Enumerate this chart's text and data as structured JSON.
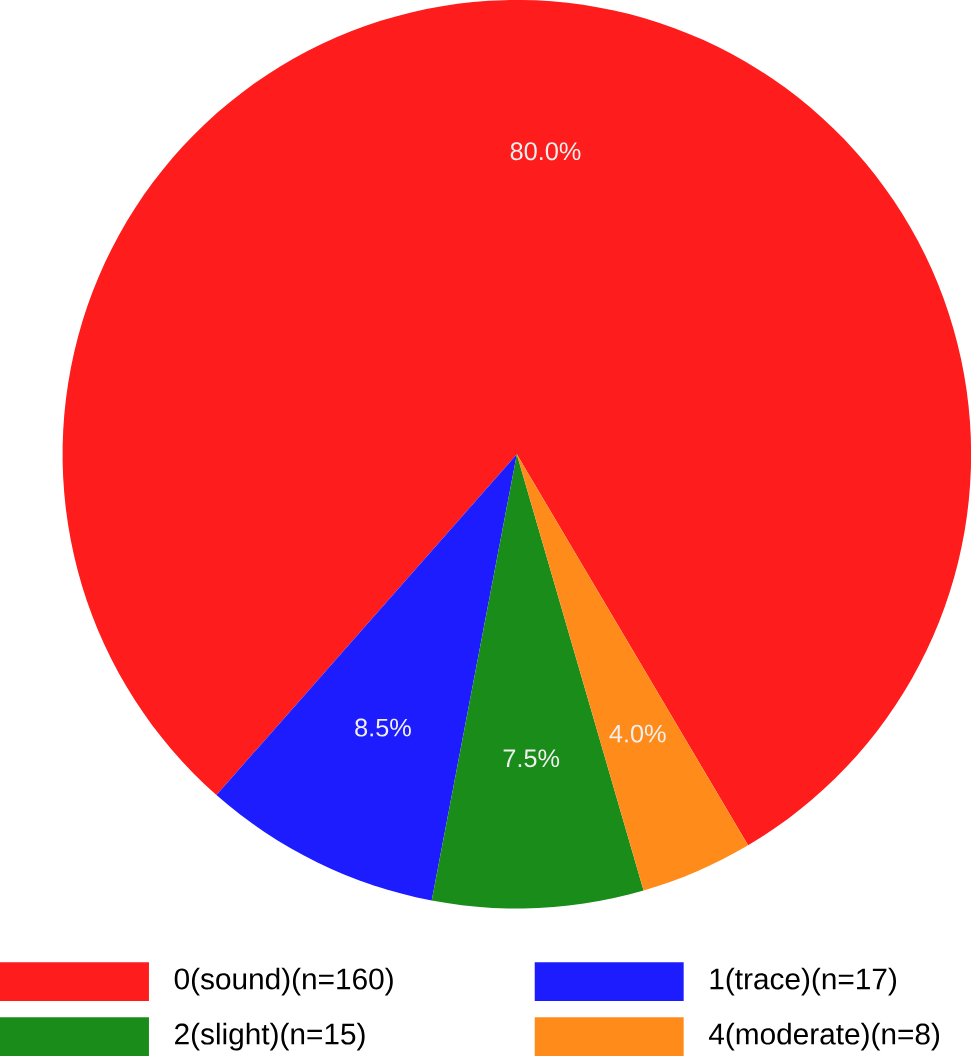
{
  "chart_data": {
    "type": "pie",
    "categories": [
      "0(sound)(n=160)",
      "1(trace)(n=17)",
      "2(slight)(n=15)",
      "4(moderate)(n=8)"
    ],
    "values": [
      80.0,
      8.5,
      7.5,
      4.0
    ],
    "colors": [
      "#ff1c1c",
      "#1c1cff",
      "#1a8c1a",
      "#ff8c1a"
    ],
    "value_labels": [
      "80.0%",
      "8.5%",
      "7.5%",
      "4.0%"
    ],
    "legend": "bottom"
  }
}
